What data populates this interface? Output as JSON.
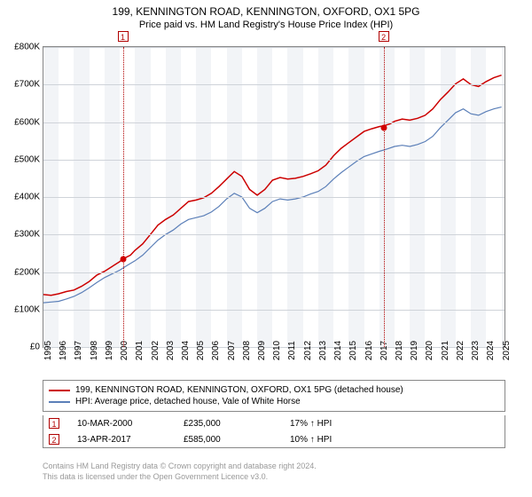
{
  "title": "199, KENNINGTON ROAD, KENNINGTON, OXFORD, OX1 5PG",
  "subtitle": "Price paid vs. HM Land Registry's House Price Index (HPI)",
  "chart": {
    "type": "line",
    "background_color": "#ffffff",
    "plot_band_color": "#f2f4f7",
    "grid_color": "#cfd3d9",
    "border_color": "#888888",
    "xlim": [
      1995,
      2025.2
    ],
    "ylim": [
      0,
      800000
    ],
    "ytick_step": 100000,
    "y_prefix": "£",
    "y_suffix": "K",
    "x_ticks": [
      1995,
      1996,
      1997,
      1998,
      1999,
      2000,
      2001,
      2002,
      2003,
      2004,
      2005,
      2006,
      2007,
      2008,
      2009,
      2010,
      2011,
      2012,
      2013,
      2014,
      2015,
      2016,
      2017,
      2018,
      2019,
      2020,
      2021,
      2022,
      2023,
      2024,
      2025
    ],
    "series": [
      {
        "name": "199, KENNINGTON ROAD, KENNINGTON, OXFORD, OX1 5PG (detached house)",
        "color": "#cc0000",
        "line_width": 1.5,
        "data": [
          [
            1995.0,
            140000
          ],
          [
            1995.5,
            138000
          ],
          [
            1996.0,
            142000
          ],
          [
            1996.5,
            148000
          ],
          [
            1997.0,
            152000
          ],
          [
            1997.5,
            162000
          ],
          [
            1998.0,
            175000
          ],
          [
            1998.5,
            192000
          ],
          [
            1999.0,
            202000
          ],
          [
            1999.5,
            215000
          ],
          [
            2000.0,
            228000
          ],
          [
            2000.3,
            237000
          ],
          [
            2000.7,
            245000
          ],
          [
            2001.0,
            258000
          ],
          [
            2001.5,
            275000
          ],
          [
            2002.0,
            300000
          ],
          [
            2002.5,
            325000
          ],
          [
            2003.0,
            340000
          ],
          [
            2003.5,
            352000
          ],
          [
            2004.0,
            370000
          ],
          [
            2004.5,
            388000
          ],
          [
            2005.0,
            392000
          ],
          [
            2005.5,
            398000
          ],
          [
            2006.0,
            410000
          ],
          [
            2006.5,
            428000
          ],
          [
            2007.0,
            448000
          ],
          [
            2007.5,
            468000
          ],
          [
            2008.0,
            455000
          ],
          [
            2008.5,
            420000
          ],
          [
            2009.0,
            405000
          ],
          [
            2009.5,
            420000
          ],
          [
            2010.0,
            445000
          ],
          [
            2010.5,
            452000
          ],
          [
            2011.0,
            448000
          ],
          [
            2011.5,
            450000
          ],
          [
            2012.0,
            455000
          ],
          [
            2012.5,
            462000
          ],
          [
            2013.0,
            470000
          ],
          [
            2013.5,
            485000
          ],
          [
            2014.0,
            510000
          ],
          [
            2014.5,
            530000
          ],
          [
            2015.0,
            545000
          ],
          [
            2015.5,
            560000
          ],
          [
            2016.0,
            575000
          ],
          [
            2016.5,
            582000
          ],
          [
            2017.0,
            588000
          ],
          [
            2017.3,
            590000
          ],
          [
            2017.7,
            595000
          ],
          [
            2018.0,
            602000
          ],
          [
            2018.5,
            608000
          ],
          [
            2019.0,
            605000
          ],
          [
            2019.5,
            610000
          ],
          [
            2020.0,
            618000
          ],
          [
            2020.5,
            635000
          ],
          [
            2021.0,
            660000
          ],
          [
            2021.5,
            680000
          ],
          [
            2022.0,
            702000
          ],
          [
            2022.5,
            715000
          ],
          [
            2023.0,
            700000
          ],
          [
            2023.5,
            695000
          ],
          [
            2024.0,
            708000
          ],
          [
            2024.5,
            718000
          ],
          [
            2025.0,
            725000
          ]
        ]
      },
      {
        "name": "HPI: Average price, detached house, Vale of White Horse",
        "color": "#5b7fb8",
        "line_width": 1.2,
        "data": [
          [
            1995.0,
            118000
          ],
          [
            1995.5,
            120000
          ],
          [
            1996.0,
            122000
          ],
          [
            1996.5,
            128000
          ],
          [
            1997.0,
            135000
          ],
          [
            1997.5,
            145000
          ],
          [
            1998.0,
            158000
          ],
          [
            1998.5,
            172000
          ],
          [
            1999.0,
            185000
          ],
          [
            1999.5,
            195000
          ],
          [
            2000.0,
            205000
          ],
          [
            2000.5,
            218000
          ],
          [
            2001.0,
            230000
          ],
          [
            2001.5,
            245000
          ],
          [
            2002.0,
            265000
          ],
          [
            2002.5,
            285000
          ],
          [
            2003.0,
            300000
          ],
          [
            2003.5,
            312000
          ],
          [
            2004.0,
            328000
          ],
          [
            2004.5,
            340000
          ],
          [
            2005.0,
            345000
          ],
          [
            2005.5,
            350000
          ],
          [
            2006.0,
            360000
          ],
          [
            2006.5,
            375000
          ],
          [
            2007.0,
            395000
          ],
          [
            2007.5,
            410000
          ],
          [
            2008.0,
            400000
          ],
          [
            2008.5,
            370000
          ],
          [
            2009.0,
            358000
          ],
          [
            2009.5,
            370000
          ],
          [
            2010.0,
            388000
          ],
          [
            2010.5,
            395000
          ],
          [
            2011.0,
            392000
          ],
          [
            2011.5,
            395000
          ],
          [
            2012.0,
            400000
          ],
          [
            2012.5,
            408000
          ],
          [
            2013.0,
            415000
          ],
          [
            2013.5,
            428000
          ],
          [
            2014.0,
            448000
          ],
          [
            2014.5,
            465000
          ],
          [
            2015.0,
            480000
          ],
          [
            2015.5,
            495000
          ],
          [
            2016.0,
            508000
          ],
          [
            2016.5,
            515000
          ],
          [
            2017.0,
            522000
          ],
          [
            2017.5,
            528000
          ],
          [
            2018.0,
            535000
          ],
          [
            2018.5,
            538000
          ],
          [
            2019.0,
            535000
          ],
          [
            2019.5,
            540000
          ],
          [
            2020.0,
            548000
          ],
          [
            2020.5,
            562000
          ],
          [
            2021.0,
            585000
          ],
          [
            2021.5,
            605000
          ],
          [
            2022.0,
            625000
          ],
          [
            2022.5,
            635000
          ],
          [
            2023.0,
            622000
          ],
          [
            2023.5,
            618000
          ],
          [
            2024.0,
            628000
          ],
          [
            2024.5,
            635000
          ],
          [
            2025.0,
            640000
          ]
        ]
      }
    ],
    "markers": [
      {
        "id": "1",
        "x": 2000.2,
        "y": 235000
      },
      {
        "id": "2",
        "x": 2017.28,
        "y": 585000
      }
    ],
    "marker_color": "#d10000",
    "marker_box_border": "#b00000"
  },
  "legend": {
    "rows": [
      {
        "color": "#cc0000",
        "label": "199, KENNINGTON ROAD, KENNINGTON, OXFORD, OX1 5PG (detached house)"
      },
      {
        "color": "#5b7fb8",
        "label": "HPI: Average price, detached house, Vale of White Horse"
      }
    ]
  },
  "sales": [
    {
      "id": "1",
      "date": "10-MAR-2000",
      "price": "£235,000",
      "hpi": "17% ↑ HPI"
    },
    {
      "id": "2",
      "date": "13-APR-2017",
      "price": "£585,000",
      "hpi": "10% ↑ HPI"
    }
  ],
  "footer": {
    "line1": "Contains HM Land Registry data © Crown copyright and database right 2024.",
    "line2": "This data is licensed under the Open Government Licence v3.0."
  }
}
